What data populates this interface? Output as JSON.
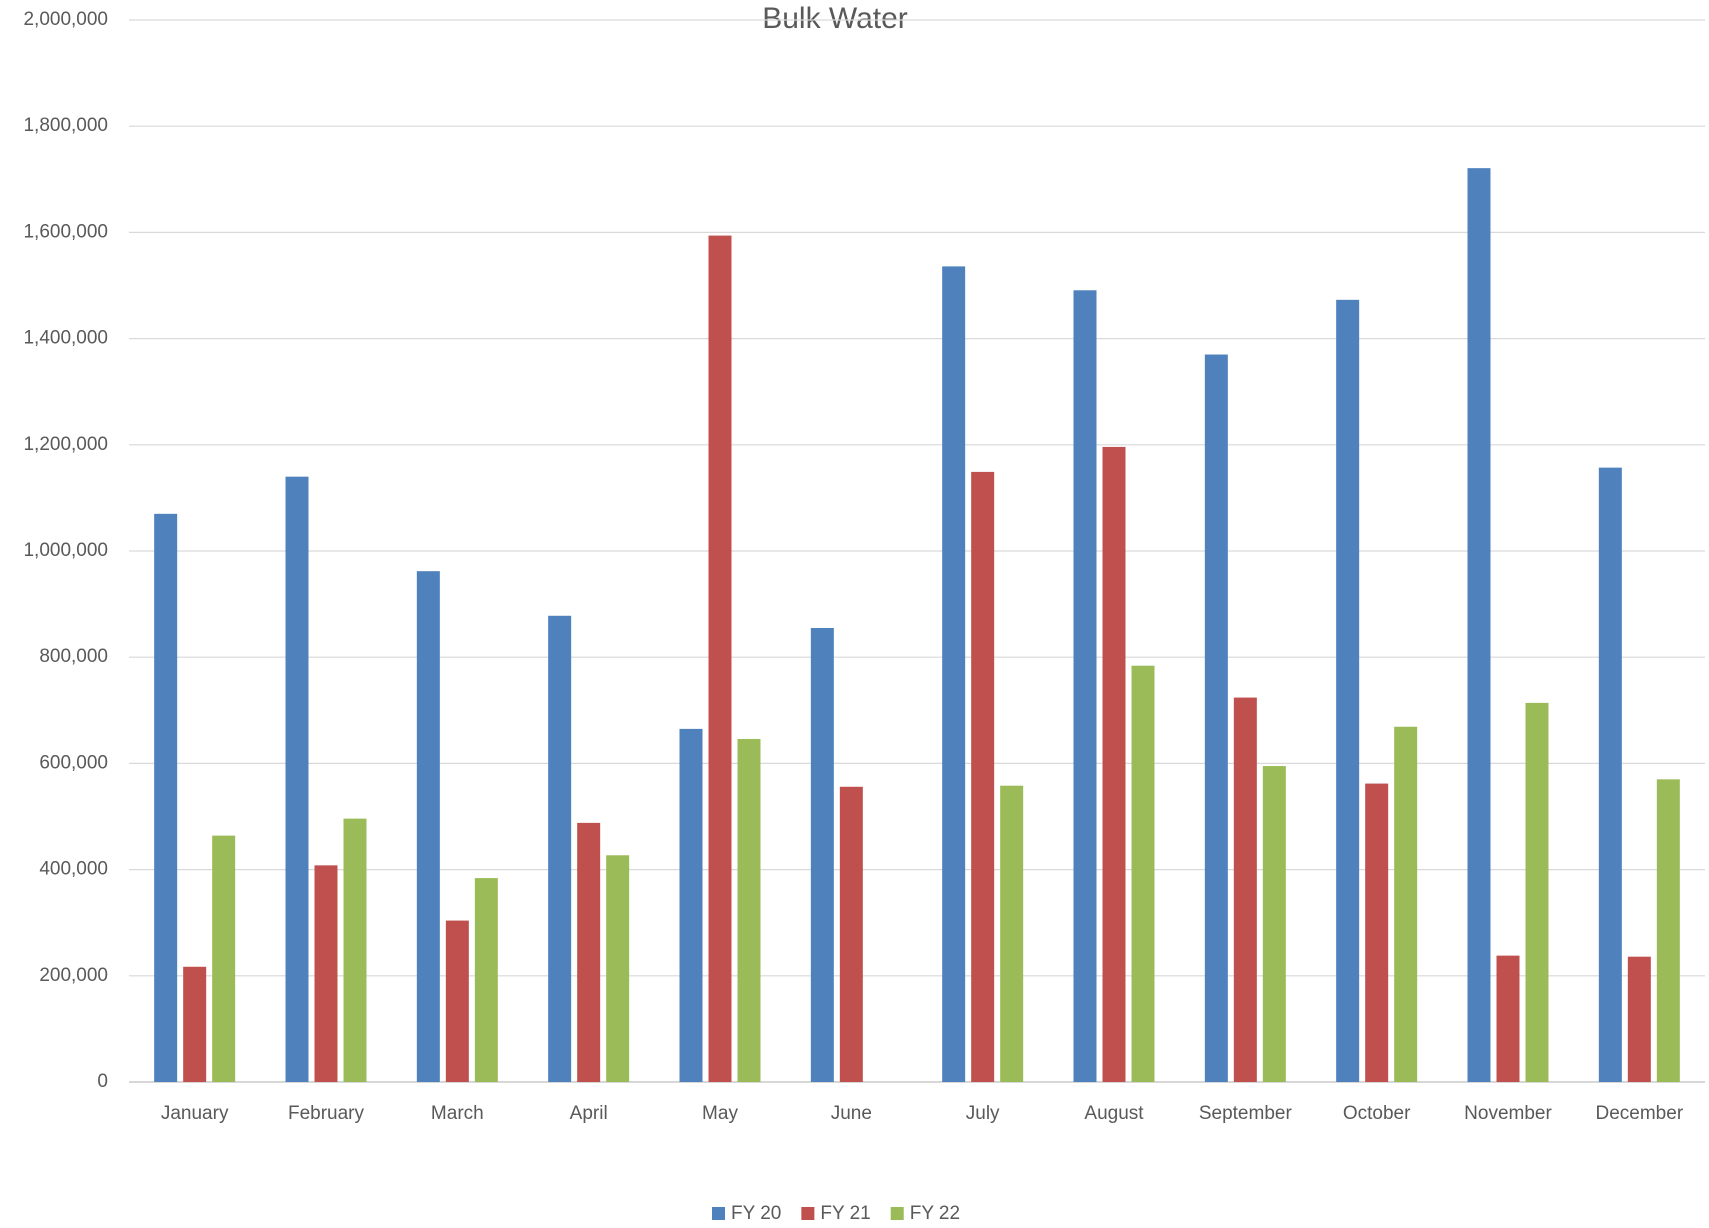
{
  "chart_data": {
    "type": "bar",
    "title": "Bulk Water",
    "categories": [
      "January",
      "February",
      "March",
      "April",
      "May",
      "June",
      "July",
      "August",
      "September",
      "October",
      "November",
      "December"
    ],
    "series": [
      {
        "name": "FY 20",
        "color": "#4f81bd",
        "values": [
          1070000,
          1140000,
          962000,
          878000,
          665000,
          855000,
          1536000,
          1491000,
          1370000,
          1473000,
          1721000,
          1157000
        ]
      },
      {
        "name": "FY 21",
        "color": "#c0504d",
        "values": [
          217000,
          408000,
          304000,
          488000,
          1594000,
          556000,
          1149000,
          1196000,
          724000,
          562000,
          238000,
          236000
        ]
      },
      {
        "name": "FY 22",
        "color": "#9bbb59",
        "values": [
          464000,
          496000,
          384000,
          427000,
          646000,
          null,
          558000,
          784000,
          595000,
          669000,
          714000,
          570000
        ]
      }
    ],
    "ylim": [
      0,
      2000000
    ],
    "yticks": [
      0,
      {
        "value": 200000,
        "label": "200,000"
      },
      {
        "value": 400000,
        "label": "400,000"
      },
      {
        "value": 600000,
        "label": "600,000"
      },
      {
        "value": 800000,
        "label": "800,000"
      },
      {
        "value": 1000000,
        "label": "1,000,000"
      },
      {
        "value": 1200000,
        "label": "1,200,000"
      },
      {
        "value": 1400000,
        "label": "1,400,000"
      },
      {
        "value": 1600000,
        "label": "1,600,000"
      },
      {
        "value": 1800000,
        "label": "1,800,000"
      },
      {
        "value": 2000000,
        "label": "2,000,000"
      }
    ],
    "grid": true,
    "legend": "bottom"
  }
}
